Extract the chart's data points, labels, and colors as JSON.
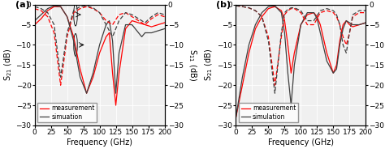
{
  "panel_a": {
    "label": "(a)",
    "s21_meas_x": [
      0,
      10,
      20,
      30,
      40,
      50,
      60,
      70,
      80,
      90,
      100,
      110,
      115,
      120,
      125,
      130,
      140,
      150,
      160,
      170,
      180,
      190,
      200
    ],
    "s21_meas_y": [
      -5,
      -3.5,
      -1.5,
      -0.5,
      -0.5,
      -3,
      -8,
      -16,
      -22,
      -18,
      -12,
      -8,
      -7,
      -17,
      -25,
      -17,
      -6,
      -4,
      -4.5,
      -5,
      -5.5,
      -5,
      -4.5
    ],
    "s21_sim_x": [
      0,
      10,
      20,
      30,
      40,
      50,
      60,
      70,
      80,
      90,
      100,
      110,
      115,
      120,
      125,
      130,
      140,
      150,
      155,
      160,
      165,
      170,
      180,
      190,
      200
    ],
    "s21_sim_y": [
      -4,
      -2.5,
      -1,
      -0.3,
      -0.5,
      -3,
      -9,
      -18,
      -22,
      -17,
      -10,
      -5,
      -4,
      -9,
      -22,
      -12,
      -5,
      -5,
      -6,
      -7,
      -8,
      -7,
      -7,
      -6.5,
      -6
    ],
    "s11_meas_x": [
      0,
      10,
      20,
      30,
      40,
      50,
      60,
      70,
      80,
      90,
      100,
      110,
      120,
      130,
      140,
      150,
      160,
      170,
      180,
      190,
      200
    ],
    "s11_meas_y": [
      -1,
      -1.5,
      -3,
      -7,
      -20,
      -8,
      -2,
      -1,
      -0.5,
      -1,
      -2,
      -4,
      -5,
      -2.5,
      -2,
      -3,
      -4,
      -5,
      -3.5,
      -2.5,
      -3
    ],
    "s11_sim_x": [
      0,
      10,
      20,
      30,
      40,
      50,
      60,
      70,
      80,
      90,
      100,
      110,
      120,
      130,
      140,
      150,
      160,
      170,
      180,
      190,
      200
    ],
    "s11_sim_y": [
      -0.5,
      -1,
      -2,
      -5,
      -18,
      -7,
      -1.5,
      -0.5,
      -0.3,
      -0.8,
      -2,
      -5,
      -8,
      -4,
      -2,
      -2.5,
      -3.5,
      -4.5,
      -3,
      -2,
      -2.5
    ],
    "legend_sim": "simuation"
  },
  "panel_b": {
    "label": "(b)",
    "s21_meas_x": [
      0,
      10,
      20,
      30,
      40,
      50,
      60,
      70,
      75,
      80,
      85,
      90,
      100,
      110,
      120,
      125,
      130,
      140,
      150,
      155,
      160,
      165,
      170,
      175,
      180,
      190,
      200
    ],
    "s21_meas_y": [
      -28,
      -20,
      -12,
      -6,
      -3,
      -1,
      -0.5,
      -1.5,
      -4,
      -10,
      -17,
      -12,
      -5,
      -2.5,
      -2,
      -3,
      -5,
      -12,
      -17,
      -15,
      -9,
      -5,
      -4,
      -5,
      -5.5,
      -5,
      -4.5
    ],
    "s21_sim_x": [
      0,
      10,
      20,
      30,
      40,
      50,
      60,
      70,
      75,
      80,
      85,
      90,
      100,
      110,
      120,
      125,
      130,
      140,
      150,
      155,
      160,
      165,
      170,
      175,
      180,
      190,
      200
    ],
    "s21_sim_y": [
      -28,
      -18,
      -10,
      -5,
      -2,
      -0.5,
      -0.3,
      -2,
      -7,
      -17,
      -25,
      -15,
      -5,
      -2,
      -2,
      -3.5,
      -7,
      -14,
      -17,
      -16,
      -10,
      -6,
      -4,
      -4.5,
      -5,
      -5,
      -4.5
    ],
    "s11_meas_x": [
      0,
      10,
      20,
      30,
      40,
      50,
      60,
      70,
      75,
      80,
      85,
      90,
      100,
      110,
      120,
      130,
      140,
      150,
      155,
      160,
      165,
      170,
      175,
      180,
      190,
      200
    ],
    "s11_meas_y": [
      -0.3,
      -0.5,
      -0.8,
      -1.5,
      -3,
      -8,
      -20,
      -8,
      -2.5,
      -1.5,
      -1,
      -1,
      -2,
      -5,
      -5,
      -2,
      -1.5,
      -2,
      -3,
      -5,
      -8,
      -10,
      -7,
      -3,
      -2,
      -2
    ],
    "s11_sim_x": [
      0,
      10,
      20,
      30,
      40,
      50,
      60,
      70,
      75,
      80,
      85,
      90,
      100,
      110,
      120,
      130,
      140,
      150,
      155,
      160,
      165,
      170,
      175,
      180,
      190,
      200
    ],
    "s11_sim_y": [
      -0.3,
      -0.5,
      -0.8,
      -1.5,
      -3,
      -9,
      -22,
      -7,
      -2,
      -1.2,
      -0.8,
      -0.8,
      -1.5,
      -4,
      -4,
      -1.5,
      -1,
      -1.5,
      -2.5,
      -5,
      -10,
      -12,
      -7,
      -2.5,
      -1.5,
      -1.5
    ],
    "legend_sim": "simulation"
  },
  "ylim_s21": [
    -30,
    0
  ],
  "ylim_s11": [
    -30,
    0
  ],
  "xlim": [
    0,
    200
  ],
  "xticks": [
    0,
    25,
    50,
    75,
    100,
    125,
    150,
    175,
    200
  ],
  "yticks_s21": [
    0,
    -5,
    -10,
    -15,
    -20,
    -25,
    -30
  ],
  "yticks_s11": [
    0,
    -5,
    -10,
    -15,
    -20,
    -25,
    -30
  ],
  "xlabel": "Frequency (GHz)",
  "ylabel_left": "S$_{21}$ (dB)",
  "ylabel_right": "S$_{11}$ (dB)",
  "legend_measurement": "measurement",
  "color_meas": "#FF0000",
  "color_sim": "#404040",
  "bg_color": "#f0f0f0",
  "grid_color": "white",
  "fontsize": 7
}
